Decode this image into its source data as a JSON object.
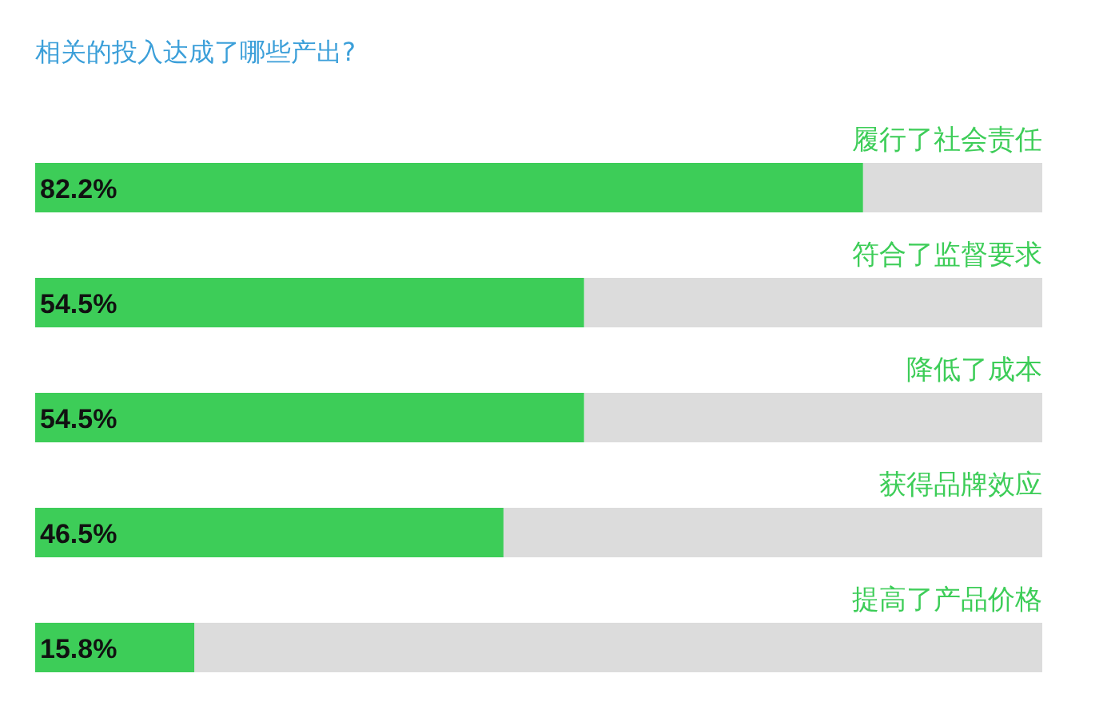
{
  "chart_data": {
    "type": "bar",
    "orientation": "horizontal",
    "title": "相关的投入达成了哪些产出?",
    "categories": [
      "履行了社会责任",
      "符合了监督要求",
      "降低了成本",
      "获得品牌效应",
      "提高了产品价格"
    ],
    "values": [
      82.2,
      54.5,
      54.5,
      46.5,
      15.8
    ],
    "value_labels": [
      "82.2%",
      "54.5%",
      "54.5%",
      "46.5%",
      "15.8%"
    ],
    "color": "#3dcd58",
    "xlim": [
      0,
      100
    ]
  }
}
